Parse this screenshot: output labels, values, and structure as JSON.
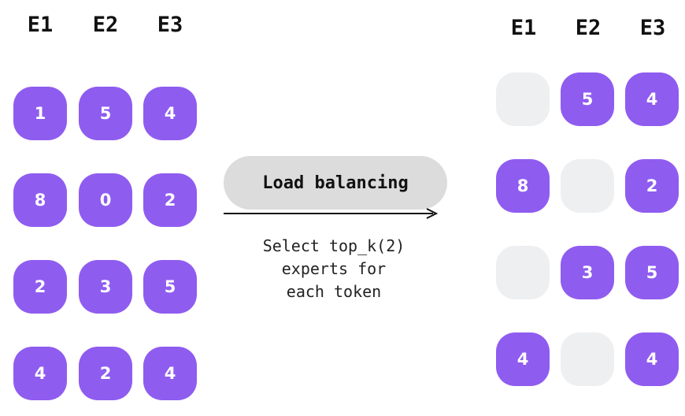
{
  "left_grid": {
    "headers": [
      "E1",
      "E2",
      "E3"
    ],
    "rows": [
      [
        "1",
        "5",
        "4"
      ],
      [
        "8",
        "0",
        "2"
      ],
      [
        "2",
        "3",
        "5"
      ],
      [
        "4",
        "2",
        "4"
      ]
    ]
  },
  "right_grid": {
    "headers": [
      "E1",
      "E2",
      "E3"
    ],
    "rows": [
      [
        "",
        "5",
        "4"
      ],
      [
        "8",
        "",
        "2"
      ],
      [
        "",
        "3",
        "5"
      ],
      [
        "4",
        "",
        "4"
      ]
    ]
  },
  "process": {
    "label": "Load balancing",
    "caption_lines": [
      "Select top_k(2)",
      "experts for",
      "each token"
    ]
  },
  "colors": {
    "active": "#8f5cf0",
    "empty": "#eeeff1",
    "pill": "#dcdcdc"
  }
}
